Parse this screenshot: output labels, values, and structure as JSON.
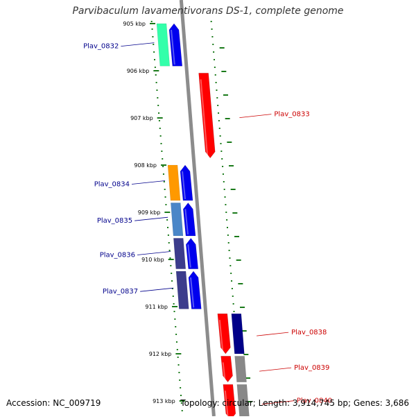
{
  "header": {
    "title": "Parvibaculum lavamentivorans DS-1, complete genome"
  },
  "footer": {
    "accession": "Accession: NC_009719",
    "summary": "Topology: circular; Length: 3,914,745 bp; Genes: 3,686"
  },
  "ticks": [
    {
      "label": "905 kbp",
      "kb": 905
    },
    {
      "label": "906 kbp",
      "kb": 906
    },
    {
      "label": "907 kbp",
      "kb": 907
    },
    {
      "label": "908 kbp",
      "kb": 908
    },
    {
      "label": "909 kbp",
      "kb": 909
    },
    {
      "label": "910 kbp",
      "kb": 910
    },
    {
      "label": "911 kbp",
      "kb": 911
    },
    {
      "label": "912 kbp",
      "kb": 912
    },
    {
      "label": "913 kbp",
      "kb": 913
    }
  ],
  "genes": [
    {
      "name": "Plav_0832",
      "strand": "forward",
      "start_kb": 905.0,
      "end_kb": 905.9,
      "color": "#0000ee",
      "cog_color": "#33ffaa"
    },
    {
      "name": "Plav_0833",
      "strand": "reverse",
      "start_kb": 906.05,
      "end_kb": 907.85,
      "color": "#ff0000",
      "cog_color": null
    },
    {
      "name": "Plav_0834",
      "strand": "forward",
      "start_kb": 908.0,
      "end_kb": 908.75,
      "color": "#0000ee",
      "cog_color": "#ff9900"
    },
    {
      "name": "Plav_0835",
      "strand": "forward",
      "start_kb": 908.8,
      "end_kb": 909.5,
      "color": "#0000ee",
      "cog_color": "#4a86c8"
    },
    {
      "name": "Plav_0836",
      "strand": "forward",
      "start_kb": 909.55,
      "end_kb": 910.2,
      "color": "#0000ee",
      "cog_color": "#3c3c8c"
    },
    {
      "name": "Plav_0837",
      "strand": "forward",
      "start_kb": 910.25,
      "end_kb": 911.05,
      "color": "#0000ee",
      "cog_color": "#3c3c8c"
    },
    {
      "name": "Plav_0838",
      "strand": "reverse",
      "start_kb": 911.15,
      "end_kb": 912.0,
      "color": "#ff0000",
      "cog_color": "#000088"
    },
    {
      "name": "Plav_0839",
      "strand": "reverse",
      "start_kb": 912.05,
      "end_kb": 912.6,
      "color": "#ff0000",
      "cog_color": "#888888"
    },
    {
      "name": "Plav_0840",
      "strand": "reverse",
      "start_kb": 912.65,
      "end_kb": 913.4,
      "color": "#ff0000",
      "cog_color": "#888888"
    }
  ],
  "colors": {
    "forward_label": "#00008b",
    "reverse_label": "#cc0000",
    "tick": "#1a7a1a",
    "backbone": "#8c8c8c"
  }
}
